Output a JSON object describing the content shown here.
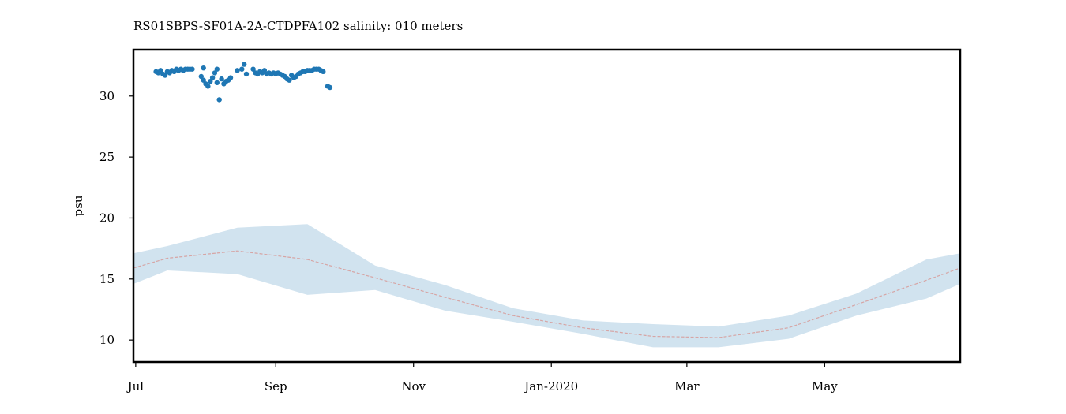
{
  "chart_data": {
    "type": "scatter",
    "title": "RS01SBPS-SF01A-2A-CTDPFA102 salinity: 010 meters",
    "xlabel": "",
    "ylabel": "psu",
    "ylim": [
      8.2,
      33.8
    ],
    "xlim": [
      "2019-06-30",
      "2020-06-30"
    ],
    "x_ticks": [
      {
        "date": "2019-07-01",
        "label": "Jul"
      },
      {
        "date": "2019-09-01",
        "label": "Sep"
      },
      {
        "date": "2019-11-01",
        "label": "Nov"
      },
      {
        "date": "2020-01-01",
        "label": "Jan-2020"
      },
      {
        "date": "2020-03-01",
        "label": "Mar"
      },
      {
        "date": "2020-05-01",
        "label": "May"
      }
    ],
    "y_ticks": [
      10,
      15,
      20,
      25,
      30
    ],
    "grid": false,
    "series": [
      {
        "kind": "scatter",
        "color": "#1f77b4",
        "points": [
          {
            "x": "2019-07-10",
            "y": 32.0
          },
          {
            "x": "2019-07-11",
            "y": 31.9
          },
          {
            "x": "2019-07-12",
            "y": 32.1
          },
          {
            "x": "2019-07-13",
            "y": 31.8
          },
          {
            "x": "2019-07-14",
            "y": 31.7
          },
          {
            "x": "2019-07-15",
            "y": 32.0
          },
          {
            "x": "2019-07-16",
            "y": 31.9
          },
          {
            "x": "2019-07-17",
            "y": 32.1
          },
          {
            "x": "2019-07-18",
            "y": 32.0
          },
          {
            "x": "2019-07-19",
            "y": 32.2
          },
          {
            "x": "2019-07-20",
            "y": 32.1
          },
          {
            "x": "2019-07-21",
            "y": 32.2
          },
          {
            "x": "2019-07-22",
            "y": 32.1
          },
          {
            "x": "2019-07-23",
            "y": 32.2
          },
          {
            "x": "2019-07-24",
            "y": 32.2
          },
          {
            "x": "2019-07-25",
            "y": 32.2
          },
          {
            "x": "2019-07-26",
            "y": 32.2
          },
          {
            "x": "2019-07-30",
            "y": 31.6
          },
          {
            "x": "2019-07-31",
            "y": 31.3
          },
          {
            "x": "2019-08-01",
            "y": 31.0
          },
          {
            "x": "2019-08-02",
            "y": 30.8
          },
          {
            "x": "2019-08-03",
            "y": 31.2
          },
          {
            "x": "2019-08-04",
            "y": 31.5
          },
          {
            "x": "2019-08-05",
            "y": 31.9
          },
          {
            "x": "2019-08-06",
            "y": 31.1
          },
          {
            "x": "2019-08-07",
            "y": 29.7
          },
          {
            "x": "2019-08-08",
            "y": 31.4
          },
          {
            "x": "2019-08-09",
            "y": 31.0
          },
          {
            "x": "2019-08-10",
            "y": 31.2
          },
          {
            "x": "2019-08-11",
            "y": 31.3
          },
          {
            "x": "2019-08-12",
            "y": 31.5
          },
          {
            "x": "2019-07-31",
            "y": 32.3
          },
          {
            "x": "2019-08-06",
            "y": 32.2
          },
          {
            "x": "2019-08-15",
            "y": 32.1
          },
          {
            "x": "2019-08-17",
            "y": 32.2
          },
          {
            "x": "2019-08-18",
            "y": 32.6
          },
          {
            "x": "2019-08-19",
            "y": 31.8
          },
          {
            "x": "2019-08-22",
            "y": 32.2
          },
          {
            "x": "2019-08-23",
            "y": 31.9
          },
          {
            "x": "2019-08-24",
            "y": 31.8
          },
          {
            "x": "2019-08-25",
            "y": 32.0
          },
          {
            "x": "2019-08-26",
            "y": 31.9
          },
          {
            "x": "2019-08-27",
            "y": 32.1
          },
          {
            "x": "2019-08-28",
            "y": 31.8
          },
          {
            "x": "2019-08-29",
            "y": 31.9
          },
          {
            "x": "2019-08-30",
            "y": 31.8
          },
          {
            "x": "2019-08-31",
            "y": 31.9
          },
          {
            "x": "2019-09-01",
            "y": 31.8
          },
          {
            "x": "2019-09-02",
            "y": 31.9
          },
          {
            "x": "2019-09-03",
            "y": 31.8
          },
          {
            "x": "2019-09-04",
            "y": 31.7
          },
          {
            "x": "2019-09-05",
            "y": 31.6
          },
          {
            "x": "2019-09-06",
            "y": 31.4
          },
          {
            "x": "2019-09-07",
            "y": 31.3
          },
          {
            "x": "2019-09-08",
            "y": 31.7
          },
          {
            "x": "2019-09-09",
            "y": 31.5
          },
          {
            "x": "2019-09-10",
            "y": 31.6
          },
          {
            "x": "2019-09-11",
            "y": 31.8
          },
          {
            "x": "2019-09-12",
            "y": 31.9
          },
          {
            "x": "2019-09-13",
            "y": 32.0
          },
          {
            "x": "2019-09-14",
            "y": 32.0
          },
          {
            "x": "2019-09-15",
            "y": 32.1
          },
          {
            "x": "2019-09-16",
            "y": 32.1
          },
          {
            "x": "2019-09-17",
            "y": 32.1
          },
          {
            "x": "2019-09-18",
            "y": 32.2
          },
          {
            "x": "2019-09-19",
            "y": 32.2
          },
          {
            "x": "2019-09-20",
            "y": 32.2
          },
          {
            "x": "2019-09-21",
            "y": 32.1
          },
          {
            "x": "2019-09-22",
            "y": 32.0
          },
          {
            "x": "2019-09-24",
            "y": 30.8
          },
          {
            "x": "2019-09-25",
            "y": 30.7
          }
        ]
      },
      {
        "kind": "line",
        "style": "dashed",
        "color": "#d6a5a5",
        "x": [
          "2019-06-30",
          "2019-07-15",
          "2019-08-15",
          "2019-09-15",
          "2019-10-15",
          "2019-11-15",
          "2019-12-15",
          "2020-01-15",
          "2020-02-15",
          "2020-03-15",
          "2020-04-15",
          "2020-05-15",
          "2020-06-15",
          "2020-06-30"
        ],
        "y": [
          15.9,
          16.7,
          17.3,
          16.6,
          15.1,
          13.5,
          12.0,
          11.0,
          10.3,
          10.2,
          11.0,
          12.9,
          14.9,
          15.9
        ]
      },
      {
        "kind": "band",
        "color": "#d1e3ef",
        "x": [
          "2019-06-30",
          "2019-07-15",
          "2019-08-15",
          "2019-09-15",
          "2019-10-15",
          "2019-11-15",
          "2019-12-15",
          "2020-01-15",
          "2020-02-15",
          "2020-03-15",
          "2020-04-15",
          "2020-05-15",
          "2020-06-15",
          "2020-06-30"
        ],
        "upper": [
          17.1,
          17.7,
          19.2,
          19.5,
          16.1,
          14.5,
          12.6,
          11.6,
          11.3,
          11.1,
          12.0,
          13.8,
          16.6,
          17.1
        ],
        "lower": [
          14.6,
          15.7,
          15.4,
          13.7,
          14.1,
          12.4,
          11.5,
          10.5,
          9.4,
          9.4,
          10.1,
          12.0,
          13.4,
          14.6
        ]
      }
    ]
  }
}
